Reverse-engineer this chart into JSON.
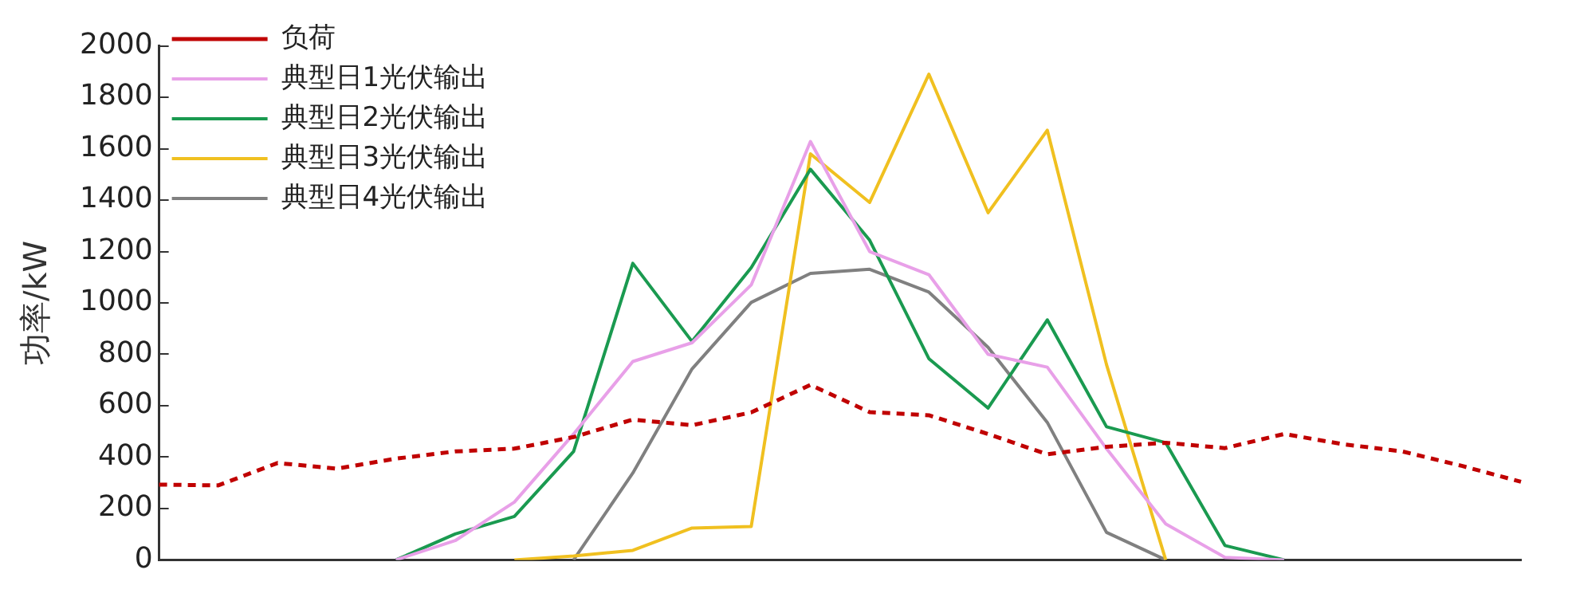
{
  "chart_data": {
    "type": "line",
    "ylabel": "功率/kW",
    "categories": [
      null,
      null,
      null,
      null,
      null,
      null,
      null,
      null,
      null,
      null,
      null,
      null,
      null,
      null,
      null,
      null,
      null,
      null,
      null,
      null,
      null,
      null,
      null,
      null
    ],
    "ylim": [
      0,
      2000
    ],
    "yticks": [
      0,
      200,
      400,
      600,
      800,
      1000,
      1200,
      1400,
      1600,
      1800,
      2000
    ],
    "grid": false,
    "legend": "top left",
    "marker": "none",
    "tick_labels": "y",
    "series": [
      {
        "name": "负荷",
        "color": "#c00000",
        "line_style": "dashed",
        "values": [
          293,
          290,
          377,
          355,
          394,
          422,
          433,
          478,
          546,
          524,
          574,
          681,
          575,
          563,
          490,
          411,
          440,
          456,
          435,
          490,
          450,
          422,
          366,
          304
        ]
      },
      {
        "name": "典型日1光伏输出",
        "color": "#e8a0e8",
        "line_style": "solid",
        "values": [
          null,
          null,
          null,
          null,
          0,
          75,
          225,
          490,
          772,
          845,
          1070,
          1628,
          1200,
          1110,
          800,
          750,
          433,
          140,
          10,
          0,
          null,
          null,
          null,
          null
        ]
      },
      {
        "name": "典型日2光伏输出",
        "color": "#1a9a50",
        "line_style": "solid",
        "values": [
          null,
          null,
          null,
          null,
          0,
          101,
          169,
          422,
          1154,
          850,
          1137,
          1520,
          1244,
          783,
          591,
          934,
          518,
          456,
          56,
          0,
          null,
          null,
          null,
          null
        ]
      },
      {
        "name": "典型日3光伏输出",
        "color": "#f0c020",
        "line_style": "solid",
        "values": [
          null,
          null,
          null,
          null,
          null,
          null,
          0,
          15,
          37,
          124,
          130,
          1580,
          1391,
          1890,
          1351,
          1672,
          760,
          0,
          null,
          null,
          null,
          null,
          null,
          null
        ]
      },
      {
        "name": "典型日4光伏输出",
        "color": "#808080",
        "line_style": "solid",
        "values": [
          null,
          null,
          null,
          null,
          null,
          null,
          null,
          0,
          338,
          743,
          1002,
          1115,
          1131,
          1042,
          827,
          535,
          107,
          0,
          null,
          null,
          null,
          null,
          null,
          null
        ]
      }
    ]
  }
}
